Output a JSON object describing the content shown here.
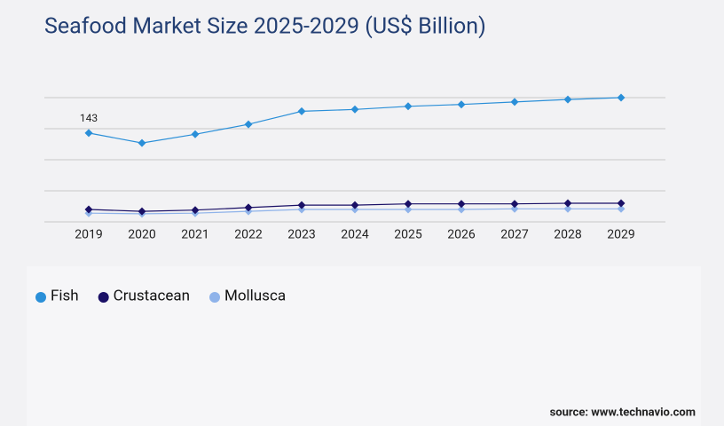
{
  "chart_data": {
    "type": "line",
    "title": "Seafood Market Size 2025-2029 (US$ Billion)",
    "categories": [
      "2019",
      "2020",
      "2021",
      "2022",
      "2023",
      "2024",
      "2025",
      "2026",
      "2027",
      "2028",
      "2029"
    ],
    "series": [
      {
        "name": "Fish",
        "color": "#2a8fd8",
        "values": [
          143,
          127,
          141,
          157,
          178,
          181,
          186,
          189,
          193,
          197,
          200
        ]
      },
      {
        "name": "Crustacean",
        "color": "#1a1066",
        "values": [
          20,
          17,
          19,
          23,
          27,
          27,
          29,
          29,
          29,
          30,
          30
        ]
      },
      {
        "name": "Mollusca",
        "color": "#8fb3ea",
        "values": [
          14,
          13,
          14,
          17,
          20,
          20,
          20,
          20,
          21,
          21,
          21
        ]
      }
    ],
    "ylim": [
      0,
      200
    ],
    "yticks": [
      0,
      50,
      100,
      150,
      200
    ],
    "grid": true,
    "source": "source: www.technavio.com"
  }
}
